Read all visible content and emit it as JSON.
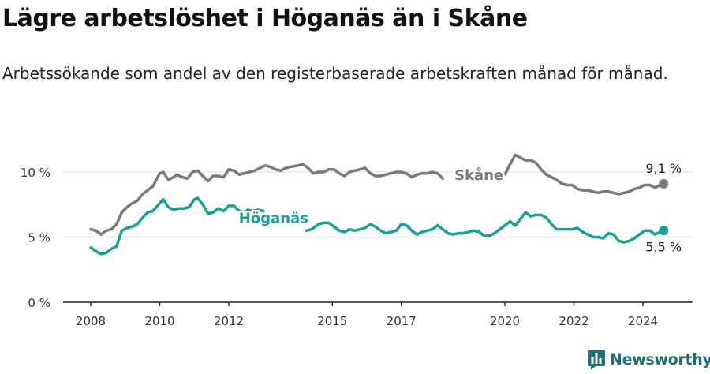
{
  "header": {
    "title": "Lägre arbetslöshet i Höganäs än i Skåne",
    "subtitle": "Arbetssökande som andel av den registerbaserade arbetskraften månad för månad."
  },
  "brand": {
    "name": "Newsworthy"
  },
  "chart_data": {
    "type": "line",
    "title": "Lägre arbetslöshet i Höganäs än i Skåne",
    "subtitle": "Arbetssökande som andel av den registerbaserade arbetskraften månad för månad.",
    "xlabel": "",
    "ylabel": "",
    "xlim": [
      2007.7,
      2025.5
    ],
    "ylim": [
      0,
      12
    ],
    "yticks": [
      0,
      5,
      10
    ],
    "ytick_labels": [
      "0 %",
      "5 %",
      "10 %"
    ],
    "xticks": [
      2008,
      2010,
      2012,
      2015,
      2017,
      2020,
      2022,
      2024
    ],
    "xtick_labels": [
      "2008",
      "2010",
      "2012",
      "2015",
      "2017",
      "2020",
      "2022",
      "2024"
    ],
    "grid": true,
    "series": [
      {
        "name": "Skåne",
        "color": "#7a7a7e",
        "end_label": "9,1 %",
        "points": [
          [
            2008.0,
            5.6
          ],
          [
            2008.15,
            5.5
          ],
          [
            2008.3,
            5.2
          ],
          [
            2008.45,
            5.5
          ],
          [
            2008.6,
            5.6
          ],
          [
            2008.75,
            6.0
          ],
          [
            2008.9,
            6.9
          ],
          [
            2009.05,
            7.3
          ],
          [
            2009.2,
            7.6
          ],
          [
            2009.35,
            7.8
          ],
          [
            2009.5,
            8.3
          ],
          [
            2009.65,
            8.6
          ],
          [
            2009.8,
            8.9
          ],
          [
            2010.0,
            9.9
          ],
          [
            2010.1,
            10.0
          ],
          [
            2010.25,
            9.4
          ],
          [
            2010.4,
            9.6
          ],
          [
            2010.5,
            9.8
          ],
          [
            2010.65,
            9.6
          ],
          [
            2010.8,
            9.5
          ],
          [
            2010.95,
            10.0
          ],
          [
            2011.1,
            10.1
          ],
          [
            2011.25,
            9.7
          ],
          [
            2011.4,
            9.3
          ],
          [
            2011.55,
            9.7
          ],
          [
            2011.7,
            9.7
          ],
          [
            2011.85,
            9.6
          ],
          [
            2012.0,
            10.2
          ],
          [
            2012.15,
            10.1
          ],
          [
            2012.3,
            9.8
          ],
          [
            2012.45,
            9.9
          ],
          [
            2012.6,
            10.0
          ],
          [
            2012.75,
            10.1
          ],
          [
            2012.9,
            10.3
          ],
          [
            2013.05,
            10.5
          ],
          [
            2013.2,
            10.4
          ],
          [
            2013.35,
            10.2
          ],
          [
            2013.5,
            10.1
          ],
          [
            2013.65,
            10.3
          ],
          [
            2013.8,
            10.4
          ],
          [
            2014.0,
            10.5
          ],
          [
            2014.15,
            10.6
          ],
          [
            2014.3,
            10.3
          ],
          [
            2014.45,
            9.9
          ],
          [
            2014.6,
            10.0
          ],
          [
            2014.75,
            10.0
          ],
          [
            2014.9,
            10.2
          ],
          [
            2015.05,
            10.2
          ],
          [
            2015.2,
            9.9
          ],
          [
            2015.35,
            9.7
          ],
          [
            2015.5,
            10.0
          ],
          [
            2015.65,
            10.1
          ],
          [
            2015.8,
            10.2
          ],
          [
            2015.95,
            10.3
          ],
          [
            2016.1,
            9.9
          ],
          [
            2016.25,
            9.7
          ],
          [
            2016.4,
            9.7
          ],
          [
            2016.55,
            9.8
          ],
          [
            2016.7,
            9.9
          ],
          [
            2016.85,
            10.0
          ],
          [
            2017.0,
            10.0
          ],
          [
            2017.15,
            9.9
          ],
          [
            2017.3,
            9.6
          ],
          [
            2017.45,
            9.8
          ],
          [
            2017.6,
            9.9
          ],
          [
            2017.75,
            9.9
          ],
          [
            2017.9,
            10.0
          ],
          [
            2018.05,
            9.9
          ],
          [
            2018.2,
            9.5
          ],
          [
            2019.7,
            9.6
          ],
          [
            2019.85,
            9.7
          ],
          [
            2020.0,
            9.8
          ],
          [
            2020.15,
            10.6
          ],
          [
            2020.3,
            11.3
          ],
          [
            2020.45,
            11.1
          ],
          [
            2020.6,
            10.9
          ],
          [
            2020.75,
            10.9
          ],
          [
            2020.9,
            10.7
          ],
          [
            2021.05,
            10.2
          ],
          [
            2021.2,
            9.8
          ],
          [
            2021.35,
            9.6
          ],
          [
            2021.5,
            9.4
          ],
          [
            2021.65,
            9.1
          ],
          [
            2021.8,
            9.0
          ],
          [
            2021.95,
            9.0
          ],
          [
            2022.1,
            8.7
          ],
          [
            2022.25,
            8.6
          ],
          [
            2022.4,
            8.6
          ],
          [
            2022.55,
            8.5
          ],
          [
            2022.7,
            8.4
          ],
          [
            2022.85,
            8.5
          ],
          [
            2023.0,
            8.5
          ],
          [
            2023.15,
            8.4
          ],
          [
            2023.3,
            8.3
          ],
          [
            2023.45,
            8.4
          ],
          [
            2023.6,
            8.5
          ],
          [
            2023.75,
            8.7
          ],
          [
            2023.9,
            8.8
          ],
          [
            2024.05,
            9.0
          ],
          [
            2024.2,
            9.0
          ],
          [
            2024.35,
            8.8
          ],
          [
            2024.5,
            9.0
          ],
          [
            2024.6,
            9.1
          ]
        ]
      },
      {
        "name": "Höganäs",
        "color": "#17a195",
        "end_label": "5,5 %",
        "points": [
          [
            2008.0,
            4.2
          ],
          [
            2008.15,
            3.9
          ],
          [
            2008.3,
            3.7
          ],
          [
            2008.45,
            3.8
          ],
          [
            2008.6,
            4.1
          ],
          [
            2008.75,
            4.3
          ],
          [
            2008.9,
            5.5
          ],
          [
            2009.05,
            5.7
          ],
          [
            2009.2,
            5.8
          ],
          [
            2009.35,
            6.0
          ],
          [
            2009.5,
            6.5
          ],
          [
            2009.65,
            6.9
          ],
          [
            2009.8,
            7.0
          ],
          [
            2010.0,
            7.6
          ],
          [
            2010.1,
            7.9
          ],
          [
            2010.25,
            7.3
          ],
          [
            2010.4,
            7.1
          ],
          [
            2010.55,
            7.2
          ],
          [
            2010.7,
            7.2
          ],
          [
            2010.85,
            7.3
          ],
          [
            2011.0,
            7.9
          ],
          [
            2011.1,
            8.0
          ],
          [
            2011.25,
            7.5
          ],
          [
            2011.4,
            6.8
          ],
          [
            2011.55,
            6.9
          ],
          [
            2011.7,
            7.2
          ],
          [
            2011.85,
            7.0
          ],
          [
            2012.0,
            7.4
          ],
          [
            2012.15,
            7.4
          ],
          [
            2012.3,
            7.0
          ],
          [
            2012.45,
            6.9
          ],
          [
            2012.55,
            7.1
          ],
          [
            2012.7,
            7.0
          ],
          [
            2012.85,
            7.1
          ],
          [
            2013.0,
            7.0
          ],
          [
            2014.25,
            5.5
          ],
          [
            2014.4,
            5.6
          ],
          [
            2014.5,
            5.8
          ],
          [
            2014.6,
            6.0
          ],
          [
            2014.75,
            6.1
          ],
          [
            2014.9,
            6.1
          ],
          [
            2015.05,
            5.8
          ],
          [
            2015.2,
            5.5
          ],
          [
            2015.35,
            5.4
          ],
          [
            2015.5,
            5.6
          ],
          [
            2015.65,
            5.5
          ],
          [
            2015.8,
            5.6
          ],
          [
            2015.95,
            5.7
          ],
          [
            2016.1,
            6.0
          ],
          [
            2016.25,
            5.8
          ],
          [
            2016.4,
            5.5
          ],
          [
            2016.55,
            5.3
          ],
          [
            2016.7,
            5.4
          ],
          [
            2016.85,
            5.5
          ],
          [
            2017.0,
            6.0
          ],
          [
            2017.15,
            5.9
          ],
          [
            2017.3,
            5.5
          ],
          [
            2017.45,
            5.2
          ],
          [
            2017.6,
            5.4
          ],
          [
            2017.75,
            5.5
          ],
          [
            2017.9,
            5.6
          ],
          [
            2018.05,
            5.9
          ],
          [
            2018.2,
            5.6
          ],
          [
            2018.35,
            5.3
          ],
          [
            2018.5,
            5.2
          ],
          [
            2018.65,
            5.3
          ],
          [
            2018.8,
            5.3
          ],
          [
            2018.95,
            5.4
          ],
          [
            2019.1,
            5.5
          ],
          [
            2019.25,
            5.4
          ],
          [
            2019.4,
            5.1
          ],
          [
            2019.55,
            5.1
          ],
          [
            2019.7,
            5.3
          ],
          [
            2019.85,
            5.6
          ],
          [
            2020.0,
            5.9
          ],
          [
            2020.15,
            6.2
          ],
          [
            2020.3,
            5.9
          ],
          [
            2020.45,
            6.4
          ],
          [
            2020.6,
            6.9
          ],
          [
            2020.75,
            6.6
          ],
          [
            2020.9,
            6.7
          ],
          [
            2021.05,
            6.7
          ],
          [
            2021.2,
            6.5
          ],
          [
            2021.35,
            6.0
          ],
          [
            2021.5,
            5.6
          ],
          [
            2021.65,
            5.6
          ],
          [
            2021.8,
            5.6
          ],
          [
            2021.95,
            5.6
          ],
          [
            2022.1,
            5.7
          ],
          [
            2022.25,
            5.4
          ],
          [
            2022.4,
            5.2
          ],
          [
            2022.55,
            5.0
          ],
          [
            2022.7,
            5.0
          ],
          [
            2022.85,
            4.9
          ],
          [
            2023.0,
            5.3
          ],
          [
            2023.15,
            5.2
          ],
          [
            2023.3,
            4.7
          ],
          [
            2023.45,
            4.6
          ],
          [
            2023.6,
            4.7
          ],
          [
            2023.75,
            4.9
          ],
          [
            2023.9,
            5.2
          ],
          [
            2024.05,
            5.5
          ],
          [
            2024.2,
            5.5
          ],
          [
            2024.35,
            5.2
          ],
          [
            2024.5,
            5.4
          ],
          [
            2024.6,
            5.5
          ]
        ]
      }
    ],
    "annotations": [
      {
        "text": "Skåne",
        "x": 2019.25,
        "y": 9.4,
        "series": "Skåne"
      },
      {
        "text": "Höganäs",
        "x": 2013.3,
        "y": 6.1,
        "series": "Höganäs"
      }
    ]
  }
}
